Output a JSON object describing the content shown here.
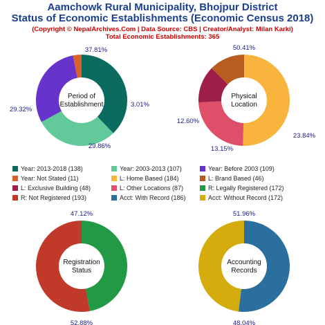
{
  "header": {
    "title_line1": "Aamchowk Rural Municipality, Bhojpur District",
    "title_line2": "Status of Economic Establishments (Economic Census 2018)",
    "subtitle": "(Copyright © NepalArchives.Com | Data Source: CBS | Creator/Analyst: Milan Karki)",
    "total": "Total Economic Establishments: 365"
  },
  "chart_data": [
    {
      "type": "pie",
      "title_lines": [
        "Period of",
        "Establishment"
      ],
      "categories": [
        "Year: 2013-2018",
        "Year: 2003-2013",
        "Year: Before 2003",
        "Year: Not Stated"
      ],
      "values": [
        138,
        107,
        109,
        11
      ],
      "percent_labels": [
        "37.81%",
        "29.32%",
        "29.86%",
        "3.01%"
      ],
      "colors": [
        "#0b6b5f",
        "#62c99a",
        "#6633cc",
        "#d9622b"
      ]
    },
    {
      "type": "pie",
      "title_lines": [
        "Physical",
        "Location"
      ],
      "categories": [
        "L: Home Based",
        "L: Other Locations",
        "L: Exclusive Building",
        "L: Brand Based"
      ],
      "values": [
        184,
        87,
        48,
        46
      ],
      "percent_labels": [
        "50.41%",
        "23.84%",
        "13.15%",
        "12.60%"
      ],
      "colors": [
        "#f9b43d",
        "#e04f6a",
        "#a01f48",
        "#b85c1f"
      ]
    },
    {
      "type": "pie",
      "title_lines": [
        "Registration",
        "Status"
      ],
      "categories": [
        "R: Legally Registered",
        "R: Not Registered"
      ],
      "values": [
        172,
        193
      ],
      "percent_labels": [
        "47.12%",
        "52.88%"
      ],
      "colors": [
        "#229944",
        "#c0392b"
      ]
    },
    {
      "type": "pie",
      "title_lines": [
        "Accounting",
        "Records"
      ],
      "categories": [
        "Acct: With Record",
        "Acct: Without Record"
      ],
      "values": [
        186,
        172
      ],
      "percent_labels": [
        "51.96%",
        "48.04%"
      ],
      "colors": [
        "#2a6f9e",
        "#d4ac0d"
      ]
    }
  ],
  "legend": [
    {
      "label": "Year: 2013-2018 (138)",
      "color": "#0b6b5f"
    },
    {
      "label": "Year: 2003-2013 (107)",
      "color": "#62c99a"
    },
    {
      "label": "Year: Before 2003 (109)",
      "color": "#6633cc"
    },
    {
      "label": "Year: Not Stated (11)",
      "color": "#d9622b"
    },
    {
      "label": "L: Home Based (184)",
      "color": "#f9b43d"
    },
    {
      "label": "L: Brand Based (46)",
      "color": "#b85c1f"
    },
    {
      "label": "L: Exclusive Building (48)",
      "color": "#a01f48"
    },
    {
      "label": "L: Other Locations (87)",
      "color": "#e04f6a"
    },
    {
      "label": "R: Legally Registered (172)",
      "color": "#229944"
    },
    {
      "label": "R: Not Registered (193)",
      "color": "#c0392b"
    },
    {
      "label": "Acct: With Record (186)",
      "color": "#2a6f9e"
    },
    {
      "label": "Acct: Without Record (172)",
      "color": "#d4ac0d"
    }
  ],
  "colors": {
    "title": "#1a3f8f",
    "subtitle": "#cc0000",
    "percent_text": "#1a1a8c"
  }
}
